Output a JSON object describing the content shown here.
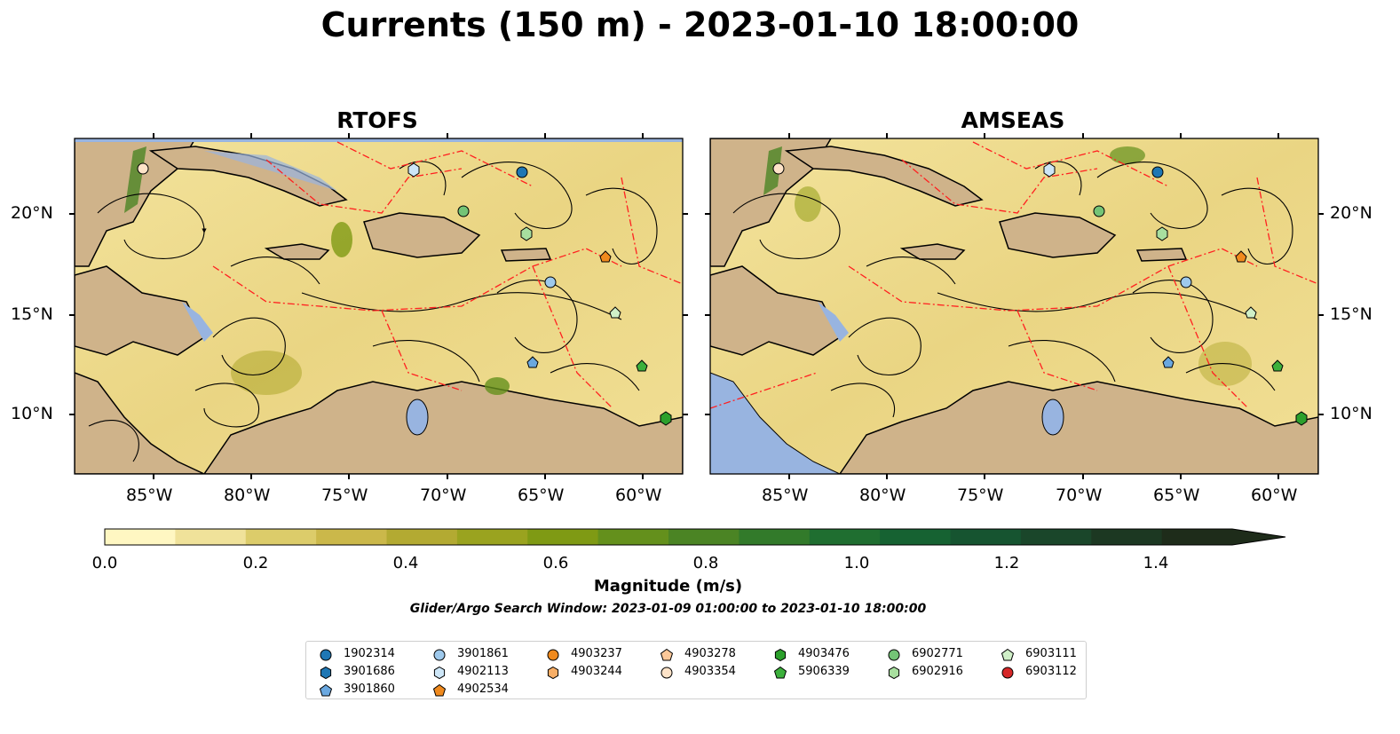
{
  "title": "Currents (150 m) - 2023-01-10 18:00:00",
  "panels": [
    {
      "title": "RTOFS"
    },
    {
      "title": "AMSEAS"
    }
  ],
  "lat_labels": [
    "20°N",
    "15°N",
    "10°N"
  ],
  "lon_labels": [
    "85°W",
    "80°W",
    "75°W",
    "70°W",
    "65°W",
    "60°W"
  ],
  "colorbar": {
    "label": "Magnitude (m/s)",
    "ticks": [
      "0.0",
      "0.2",
      "0.4",
      "0.6",
      "0.8",
      "1.0",
      "1.2",
      "1.4"
    ],
    "colors": [
      "#fff7c2",
      "#f0e29a",
      "#dccc6a",
      "#cbb84a",
      "#b3aa32",
      "#9aa31f",
      "#7f9a14",
      "#64901c",
      "#4b8424",
      "#327a2a",
      "#1f6e30",
      "#166232",
      "#165430",
      "#1a462a",
      "#1c3822",
      "#1e2c1a"
    ]
  },
  "search_window": "Glider/Argo Search Window: 2023-01-09 01:00:00 to 2023-01-10 18:00:00",
  "legend": [
    {
      "id": "1902314",
      "marker": "circle",
      "color": "#1f77b4"
    },
    {
      "id": "3901686",
      "marker": "hexagon",
      "color": "#1f77b4"
    },
    {
      "id": "3901860",
      "marker": "pentagon",
      "color": "#6aa8e0"
    },
    {
      "id": "3901861",
      "marker": "circle",
      "color": "#9ec9ec"
    },
    {
      "id": "4902113",
      "marker": "hexagon",
      "color": "#cde6f7"
    },
    {
      "id": "4902534",
      "marker": "pentagon",
      "color": "#f08a1e"
    },
    {
      "id": "4903237",
      "marker": "circle",
      "color": "#f08a1e"
    },
    {
      "id": "4903244",
      "marker": "hexagon",
      "color": "#f8ae66"
    },
    {
      "id": "4903278",
      "marker": "pentagon",
      "color": "#fbc899"
    },
    {
      "id": "4903354",
      "marker": "circle",
      "color": "#fde3c8"
    },
    {
      "id": "4903476",
      "marker": "hexagon",
      "color": "#2ca02c"
    },
    {
      "id": "5906339",
      "marker": "pentagon",
      "color": "#3cb03c"
    },
    {
      "id": "6902771",
      "marker": "circle",
      "color": "#74c476"
    },
    {
      "id": "6902916",
      "marker": "hexagon",
      "color": "#a8df9f"
    },
    {
      "id": "6903111",
      "marker": "pentagon",
      "color": "#d0f0c8"
    },
    {
      "id": "6903112",
      "marker": "circle",
      "color": "#d62728"
    }
  ]
}
